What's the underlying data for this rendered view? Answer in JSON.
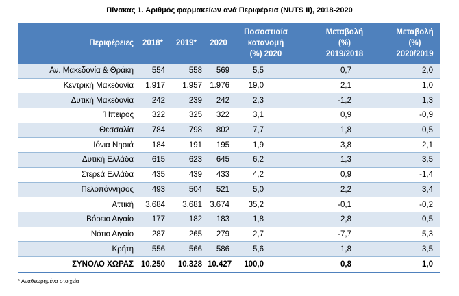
{
  "title": "Πίνακας 1. Αριθμός φαρμακείων ανά Περιφέρεια (NUTS II),  2018-2020",
  "headers": {
    "region": "Περιφέρειες",
    "y2018": "2018*",
    "y2019": "2019*",
    "y2020": "2020",
    "share_l1": "Ποσοστιαία",
    "share_l2": "κατανομή",
    "share_l3": "(%) 2020",
    "ch1_l1": "Μεταβολή",
    "ch1_l2": "(%)",
    "ch1_l3": "2019/2018",
    "ch2_l1": "Μεταβολή",
    "ch2_l2": "(%)",
    "ch2_l3": "2020/2019"
  },
  "rows": [
    {
      "region": "Αν. Μακεδονία & Θράκη",
      "y2018": "554",
      "y2019": "558",
      "y2020": "569",
      "share": "5,5",
      "ch1": "0,7",
      "ch2": "2,0"
    },
    {
      "region": "Κεντρική Μακεδονία",
      "y2018": "1.917",
      "y2019": "1.957",
      "y2020": "1.976",
      "share": "19,0",
      "ch1": "2,1",
      "ch2": "1,0"
    },
    {
      "region": "Δυτική Μακεδονία",
      "y2018": "242",
      "y2019": "239",
      "y2020": "242",
      "share": "2,3",
      "ch1": "-1,2",
      "ch2": "1,3"
    },
    {
      "region": "Ήπειρος",
      "y2018": "322",
      "y2019": "325",
      "y2020": "322",
      "share": "3,1",
      "ch1": "0,9",
      "ch2": "-0,9"
    },
    {
      "region": "Θεσσαλία",
      "y2018": "784",
      "y2019": "798",
      "y2020": "802",
      "share": "7,7",
      "ch1": "1,8",
      "ch2": "0,5"
    },
    {
      "region": "Ιόνια Νησιά",
      "y2018": "184",
      "y2019": "191",
      "y2020": "195",
      "share": "1,9",
      "ch1": "3,8",
      "ch2": "2,1"
    },
    {
      "region": "Δυτική Ελλάδα",
      "y2018": "615",
      "y2019": "623",
      "y2020": "645",
      "share": "6,2",
      "ch1": "1,3",
      "ch2": "3,5"
    },
    {
      "region": "Στερεά Ελλάδα",
      "y2018": "435",
      "y2019": "439",
      "y2020": "433",
      "share": "4,2",
      "ch1": "0,9",
      "ch2": "-1,4"
    },
    {
      "region": "Πελοπόννησος",
      "y2018": "493",
      "y2019": "504",
      "y2020": "521",
      "share": "5,0",
      "ch1": "2,2",
      "ch2": "3,4"
    },
    {
      "region": "Αττική",
      "y2018": "3.684",
      "y2019": "3.681",
      "y2020": "3.674",
      "share": "35,2",
      "ch1": "-0,1",
      "ch2": "-0,2"
    },
    {
      "region": "Βόρειο Αιγαίο",
      "y2018": "177",
      "y2019": "182",
      "y2020": "183",
      "share": "1,8",
      "ch1": "2,8",
      "ch2": "0,5"
    },
    {
      "region": "Νότιο Αιγαίο",
      "y2018": "287",
      "y2019": "265",
      "y2020": "279",
      "share": "2,7",
      "ch1": "-7,7",
      "ch2": "5,3"
    },
    {
      "region": "Κρήτη",
      "y2018": "556",
      "y2019": "566",
      "y2020": "586",
      "share": "5,6",
      "ch1": "1,8",
      "ch2": "3,5"
    }
  ],
  "total": {
    "region": "ΣΥΝΟΛΟ ΧΩΡΑΣ",
    "y2018": "10.250",
    "y2019": "10.328",
    "y2020": "10.427",
    "share": "100,0",
    "ch1": "0,8",
    "ch2": "1,0"
  },
  "footnote": "* Αναθεωρημένα στοιχεία",
  "colors": {
    "header_bg": "#4f81bd",
    "band_bg": "#dce6f1"
  }
}
